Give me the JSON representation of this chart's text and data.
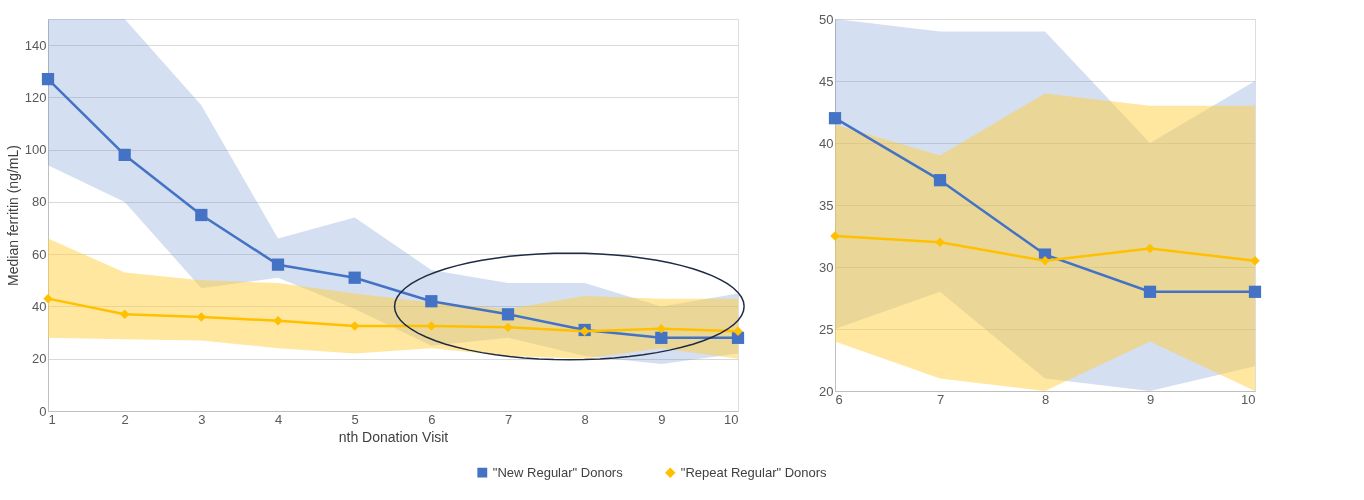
{
  "chart_data": [
    {
      "type": "line",
      "xlabel": "nth Donation Visit",
      "ylabel": "Median ferritin (ng/mL)",
      "x": [
        1,
        2,
        3,
        4,
        5,
        6,
        7,
        8,
        9,
        10
      ],
      "xlim": [
        1,
        10
      ],
      "xticks": [
        1,
        2,
        3,
        4,
        5,
        6,
        7,
        8,
        9,
        10
      ],
      "ylim": [
        0,
        150
      ],
      "yticks": [
        0,
        20,
        40,
        60,
        80,
        100,
        120,
        140
      ],
      "grid": "y",
      "legend": "bottom",
      "series": [
        {
          "name": "\"New Regular\" Donors",
          "color": "#4472c4",
          "marker": "square",
          "values": [
            127,
            98,
            75,
            56,
            51,
            42,
            37,
            31,
            28,
            28
          ],
          "lower": [
            94,
            80,
            47,
            51,
            39,
            25,
            28,
            21,
            18,
            22
          ],
          "upper": [
            150,
            150,
            117,
            66,
            74,
            54,
            49,
            49,
            40,
            45
          ]
        },
        {
          "name": "\"Repeat Regular\" Donors",
          "color": "#ffc000",
          "marker": "diamond",
          "values": [
            43,
            37,
            36,
            34.5,
            32.5,
            32.5,
            32,
            30.5,
            31.5,
            30.5
          ],
          "lower": [
            28,
            27.5,
            27,
            24,
            22,
            24,
            21,
            20,
            24,
            20
          ],
          "upper": [
            66,
            53,
            50,
            49,
            45,
            41.5,
            39,
            44,
            43,
            43
          ]
        }
      ]
    },
    {
      "type": "line",
      "x": [
        6,
        7,
        8,
        9,
        10
      ],
      "xlim": [
        6,
        10
      ],
      "xticks": [
        6,
        7,
        8,
        9,
        10
      ],
      "ylim": [
        20,
        50
      ],
      "yticks": [
        20,
        25,
        30,
        35,
        40,
        45,
        50
      ],
      "grid": "y",
      "legend": false,
      "series": [
        {
          "color": "#4472c4",
          "marker": "square",
          "values": [
            42,
            37,
            31,
            28,
            28
          ],
          "lower": [
            25,
            28,
            21,
            20,
            22
          ],
          "upper": [
            50,
            49,
            49,
            40,
            45
          ]
        },
        {
          "color": "#ffc000",
          "marker": "diamond",
          "values": [
            32.5,
            32,
            30.5,
            31.5,
            30.5
          ],
          "lower": [
            24,
            21,
            20,
            24,
            20
          ],
          "upper": [
            41.5,
            39,
            44,
            43,
            43
          ]
        }
      ]
    }
  ]
}
